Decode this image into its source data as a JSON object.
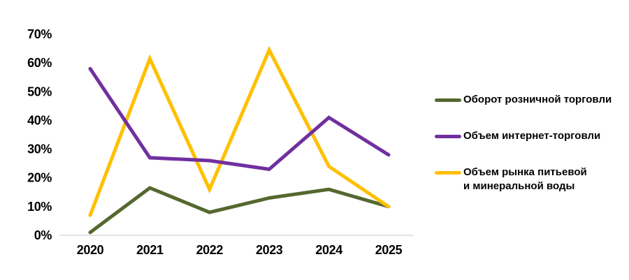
{
  "chart_data": {
    "type": "line",
    "title": "",
    "x": [
      "2020",
      "2021",
      "2022",
      "2023",
      "2024",
      "2025"
    ],
    "series": [
      {
        "name": "Оборот розничной торговли",
        "color": "#55682F",
        "values": [
          1,
          16.5,
          8,
          13,
          16,
          10
        ]
      },
      {
        "name": "Объем интернет-торговли",
        "color": "#7030A0",
        "values": [
          58,
          27,
          26,
          23,
          41,
          28
        ]
      },
      {
        "name": "Объем рынка питьевой и минеральной воды",
        "color": "#FFC000",
        "values": [
          7,
          61.5,
          16,
          64.5,
          24,
          10
        ]
      }
    ],
    "yticks": [
      "0%",
      "10%",
      "20%",
      "30%",
      "40%",
      "50%",
      "60%",
      "70%"
    ],
    "ylim": [
      0,
      70
    ],
    "xlabel": "",
    "ylabel": "",
    "grid": false,
    "legend_position": "right",
    "axis_color": "#D9D9D9",
    "text_color": "#000000"
  }
}
